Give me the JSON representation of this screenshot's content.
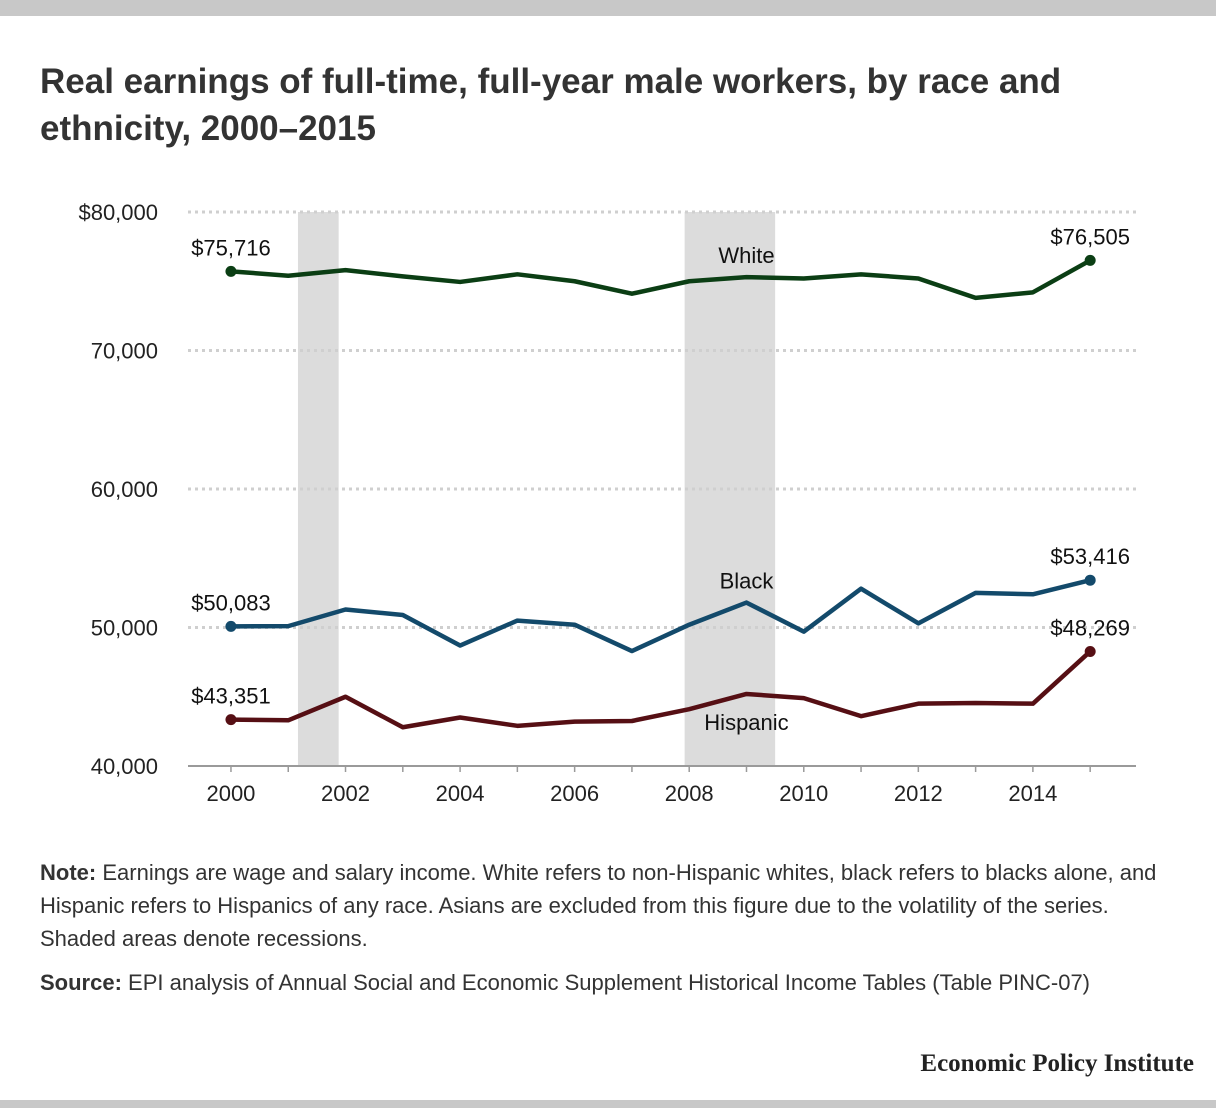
{
  "title": "Real earnings of full-time, full-year male workers, by race and ethnicity, 2000–2015",
  "note_label": "Note:",
  "note_text": "Earnings are wage and salary income. White refers to non-Hispanic whites, black refers to blacks alone, and Hispanic refers to Hispanics of any race. Asians are excluded from this figure due to the volatility of the series. Shaded areas denote recessions.",
  "source_label": "Source:",
  "source_text": "EPI analysis of Annual Social and Economic Supplement Historical Income Tables (Table PINC-07)",
  "brand": "Economic Policy Institute",
  "chart_data": {
    "type": "line",
    "x": [
      2000,
      2001,
      2002,
      2003,
      2004,
      2005,
      2006,
      2007,
      2008,
      2009,
      2010,
      2011,
      2012,
      2013,
      2014,
      2015
    ],
    "xticks": [
      2000,
      2002,
      2004,
      2006,
      2008,
      2010,
      2012,
      2014
    ],
    "xtick_labels": [
      "2000",
      "2002",
      "2004",
      "2006",
      "2008",
      "2010",
      "2012",
      "2014"
    ],
    "xlim": [
      1999.25,
      2015.8
    ],
    "ylim": [
      40000,
      80000
    ],
    "yticks": [
      40000,
      50000,
      60000,
      70000,
      80000
    ],
    "ytick_labels": [
      "40,000",
      "50,000",
      "60,000",
      "70,000",
      "$80,000"
    ],
    "grid": "horizontal dotted",
    "recessions": [
      {
        "start": 2001.17,
        "end": 2001.88
      },
      {
        "start": 2007.92,
        "end": 2009.5
      }
    ],
    "series": [
      {
        "name": "White",
        "color": "#0b3e14",
        "values": [
          75716,
          75400,
          75800,
          75350,
          74950,
          75500,
          75000,
          74100,
          75000,
          75300,
          75200,
          75500,
          75200,
          73800,
          74200,
          76505
        ],
        "label_at": 2009,
        "label_position": "above",
        "endpoint_labels": [
          "$75,716",
          "$76,505"
        ]
      },
      {
        "name": "Black",
        "color": "#134a6b",
        "values": [
          50083,
          50100,
          51300,
          50900,
          48700,
          50500,
          50200,
          48300,
          50200,
          51800,
          49700,
          52800,
          50300,
          52500,
          52400,
          53416
        ],
        "label_at": 2009,
        "label_position": "above",
        "endpoint_labels": [
          "$50,083",
          "$53,416"
        ]
      },
      {
        "name": "Hispanic",
        "color": "#560f14",
        "values": [
          43351,
          43300,
          45000,
          42800,
          43500,
          42900,
          43200,
          43250,
          44100,
          45200,
          44900,
          43600,
          44500,
          44550,
          44500,
          48269
        ],
        "label_at": 2009,
        "label_position": "below",
        "endpoint_labels": [
          "$43,351",
          "$48,269"
        ]
      }
    ]
  }
}
